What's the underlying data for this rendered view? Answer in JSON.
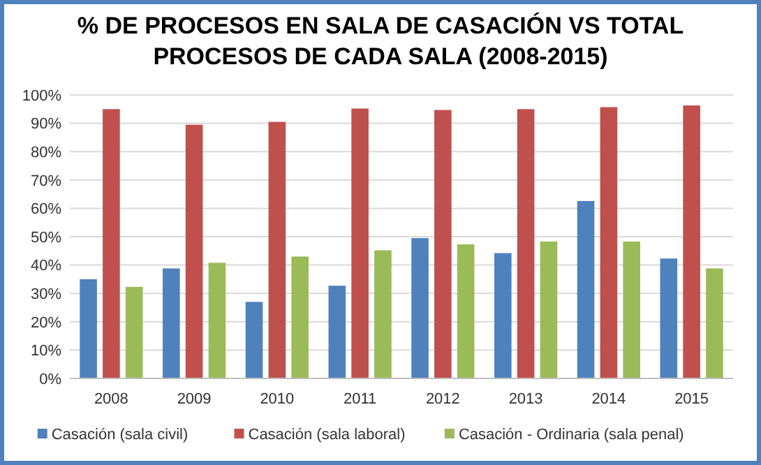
{
  "chart_data": {
    "type": "bar",
    "title": "% DE PROCESOS EN SALA DE CASACIÓN VS TOTAL PROCESOS DE CADA SALA (2008-2015)",
    "categories": [
      "2008",
      "2009",
      "2010",
      "2011",
      "2012",
      "2013",
      "2014",
      "2015"
    ],
    "series": [
      {
        "name": "Casación (sala civil)",
        "color": "#4f81bd",
        "values": [
          35,
          38.8,
          27,
          32.7,
          49.5,
          44.2,
          62.6,
          42.3
        ]
      },
      {
        "name": "Casación (sala laboral)",
        "color": "#c0504d",
        "values": [
          95,
          89.5,
          90.5,
          95.2,
          94.7,
          95,
          95.7,
          96.3
        ]
      },
      {
        "name": "Casación - Ordinaria (sala penal)",
        "color": "#9bbb59",
        "values": [
          32.3,
          40.8,
          43,
          45.2,
          47.3,
          48.3,
          48.3,
          38.8
        ]
      }
    ],
    "ylim": [
      0,
      100
    ],
    "yticks": [
      {
        "value": 0,
        "label": "0%"
      },
      {
        "value": 10,
        "label": "10%"
      },
      {
        "value": 20,
        "label": "20%"
      },
      {
        "value": 30,
        "label": "30%"
      },
      {
        "value": 40,
        "label": "40%"
      },
      {
        "value": 50,
        "label": "50%"
      },
      {
        "value": 60,
        "label": "60%"
      },
      {
        "value": 70,
        "label": "70%"
      },
      {
        "value": 80,
        "label": "80%"
      },
      {
        "value": 90,
        "label": "90%"
      },
      {
        "value": 100,
        "label": "100%"
      }
    ],
    "grid": "y",
    "legend": "bottom"
  }
}
